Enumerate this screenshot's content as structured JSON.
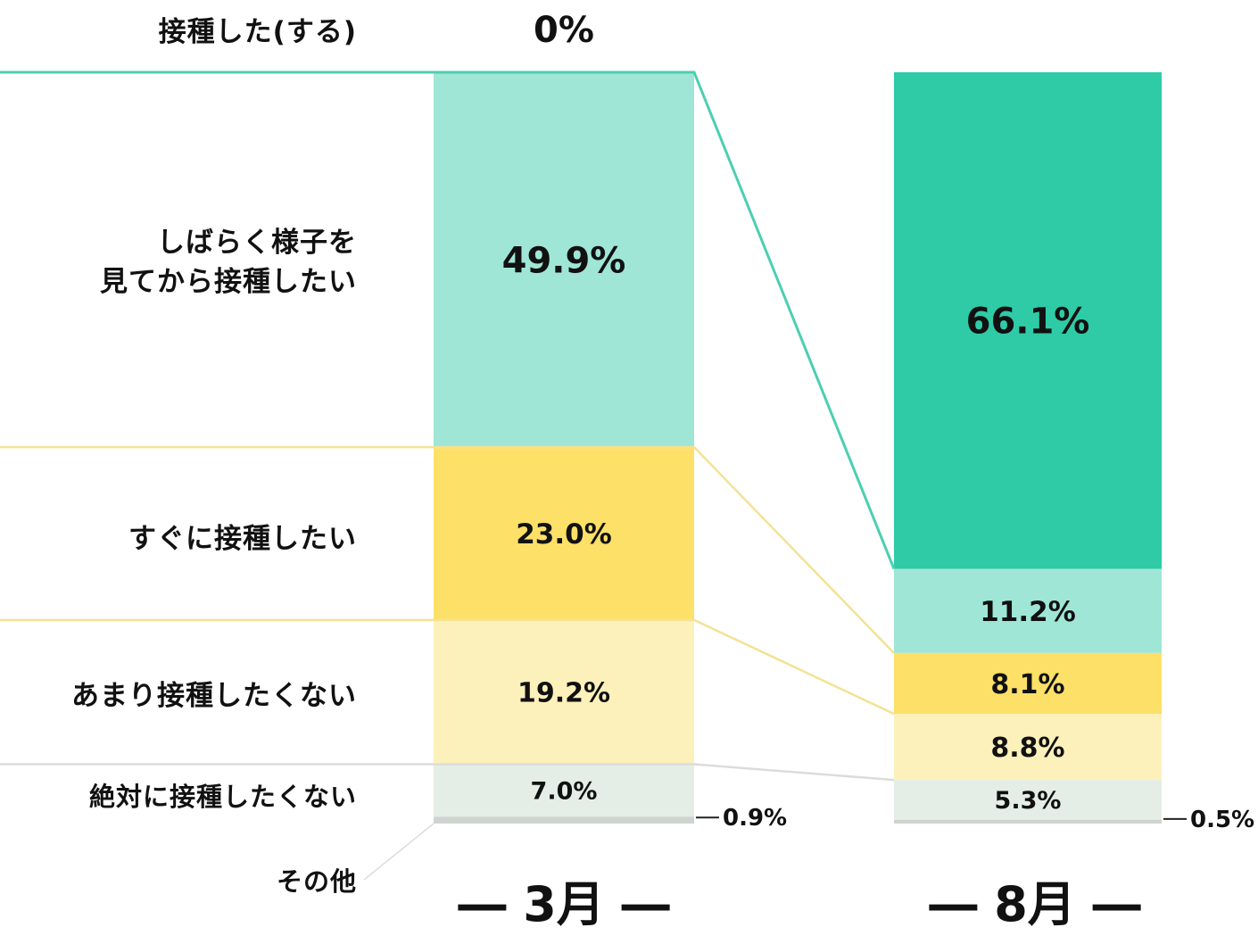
{
  "chart_data": {
    "type": "bar",
    "stacked": true,
    "categories": [
      "3月",
      "8月"
    ],
    "category_display": [
      "― 3月 ―",
      "― 8月 ―"
    ],
    "series": [
      {
        "name": "接種した(する)",
        "values": [
          0,
          66.1
        ],
        "color": "#2ecba6",
        "labels": [
          "0%",
          "66.1%"
        ]
      },
      {
        "name": "しばらく様子を見てから接種したい",
        "values": [
          49.9,
          11.2
        ],
        "color": "#9fe6d6",
        "labels": [
          "49.9%",
          "11.2%"
        ]
      },
      {
        "name": "すぐに接種したい",
        "values": [
          23.0,
          8.1
        ],
        "color": "#fde068",
        "labels": [
          "23.0%",
          "8.1%"
        ]
      },
      {
        "name": "あまり接種したくない",
        "values": [
          19.2,
          8.8
        ],
        "color": "#fdf1bb",
        "labels": [
          "19.2%",
          "8.8%"
        ]
      },
      {
        "name": "絶対に接種したくない",
        "values": [
          7.0,
          5.3
        ],
        "color": "#e4eee6",
        "labels": [
          "7.0%",
          "5.3%"
        ]
      },
      {
        "name": "その他",
        "values": [
          0.9,
          0.5
        ],
        "color": "#cfd3d1",
        "labels": [
          "0.9%",
          "0.5%"
        ]
      }
    ],
    "label_lines": [
      "しばらく様子を",
      "見てから接種したい"
    ],
    "connector_colors": [
      "#4ccfb0",
      "#f3e296",
      "#f3e296",
      "#dcdcdc"
    ],
    "ylim": [
      0,
      100
    ]
  }
}
